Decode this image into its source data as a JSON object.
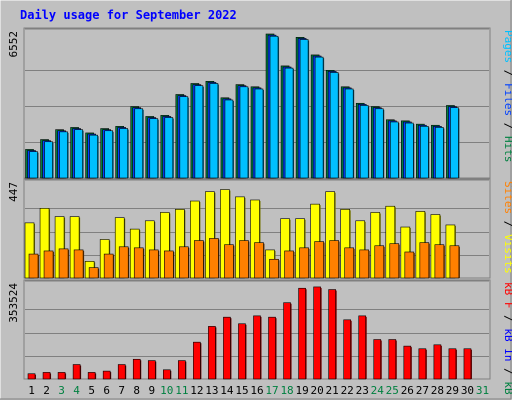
{
  "colors": {
    "background": "#c0c0c0",
    "panel": "#c0c0c0",
    "border": "#808080",
    "gridline": "#808080",
    "title": "#0000ff",
    "pages": "#00c0ff",
    "files": "#0040ff",
    "hits": "#008040",
    "visits": "#ffff00",
    "sites": "#ff8000",
    "kbytes": "#ff0000",
    "kb_in": "#0000ff",
    "kb_out": "#008040",
    "separator": "#000000",
    "day_normal": "#000000",
    "day_weekend": "#008040"
  },
  "chart_data": {
    "type": "bar",
    "title": "Daily usage for September 2022",
    "days": [
      "1",
      "2",
      "3",
      "4",
      "5",
      "6",
      "7",
      "8",
      "9",
      "10",
      "11",
      "12",
      "13",
      "14",
      "15",
      "16",
      "17",
      "18",
      "19",
      "20",
      "21",
      "22",
      "23",
      "24",
      "25",
      "26",
      "27",
      "28",
      "29",
      "30",
      "31"
    ],
    "weekend_days": [
      "3",
      "4",
      "10",
      "11",
      "17",
      "18",
      "24",
      "25",
      "31"
    ],
    "panels": [
      {
        "id": "hits",
        "axis_max_label": "6552",
        "ylim": [
          0,
          6552
        ],
        "legend": [
          {
            "text": "Pages",
            "color_key": "pages"
          },
          {
            "text": "Files",
            "color_key": "files"
          },
          {
            "text": "Hits",
            "color_key": "hits"
          }
        ],
        "series": [
          {
            "name": "Hits",
            "color_key": "hits",
            "values": [
              1300,
              1750,
              2200,
              2300,
              2050,
              2250,
              2350,
              3250,
              2800,
              2850,
              3800,
              4300,
              4400,
              3650,
              4250,
              4150,
              6552,
              5100,
              6400,
              5600,
              4900,
              4150,
              3400,
              3250,
              2650,
              2600,
              2450,
              2400,
              3300,
              0,
              0
            ]
          },
          {
            "name": "Files",
            "color_key": "files",
            "values": [
              1250,
              1700,
              2150,
              2250,
              2000,
              2200,
              2300,
              3200,
              2750,
              2800,
              3750,
              4250,
              4350,
              3600,
              4200,
              4100,
              6500,
              5050,
              6350,
              5550,
              4850,
              4100,
              3350,
              3200,
              2600,
              2550,
              2400,
              2350,
              3250,
              0,
              0
            ]
          },
          {
            "name": "Pages",
            "color_key": "pages",
            "values": [
              1200,
              1650,
              2100,
              2200,
              1950,
              2150,
              2250,
              3150,
              2700,
              2750,
              3700,
              4200,
              4300,
              3550,
              4150,
              4050,
              6450,
              5000,
              6300,
              5500,
              4800,
              4050,
              3300,
              3150,
              2550,
              2500,
              2350,
              2300,
              3200,
              0,
              0
            ]
          }
        ]
      },
      {
        "id": "visits",
        "axis_max_label": "447",
        "ylim": [
          0,
          447
        ],
        "legend": [
          {
            "text": "Sites",
            "color_key": "sites"
          },
          {
            "text": "Visits",
            "color_key": "visits"
          }
        ],
        "series": [
          {
            "name": "Visits",
            "color_key": "visits",
            "values": [
              265,
              335,
              295,
              295,
              80,
              185,
              290,
              235,
              275,
              315,
              330,
              370,
              415,
              425,
              390,
              375,
              135,
              285,
              285,
              355,
              415,
              330,
              275,
              315,
              345,
              245,
              320,
              305,
              255,
              0,
              0
            ]
          },
          {
            "name": "Sites",
            "color_key": "sites",
            "values": [
              115,
              130,
              140,
              135,
              50,
              115,
              150,
              145,
              135,
              130,
              150,
              180,
              190,
              160,
              180,
              170,
              90,
              130,
              145,
              175,
              180,
              145,
              135,
              155,
              165,
              125,
              170,
              160,
              155,
              0,
              0
            ]
          }
        ]
      },
      {
        "id": "kbytes",
        "axis_max_label": "353524",
        "ylim": [
          0,
          353524
        ],
        "legend": [
          {
            "text": "kB F",
            "color_key": "kbytes"
          },
          {
            "text": "kB In",
            "color_key": "kb_in"
          },
          {
            "text": "kB Out",
            "color_key": "kb_out"
          }
        ],
        "series": [
          {
            "name": "kB F",
            "color_key": "kbytes",
            "values": [
              20000,
              25000,
              25000,
              55000,
              25000,
              30000,
              55000,
              75000,
              70000,
              35000,
              70000,
              140000,
              200000,
              235000,
              210000,
              240000,
              235000,
              290000,
              345000,
              350000,
              340000,
              225000,
              240000,
              150000,
              150000,
              125000,
              115000,
              130000,
              115000,
              115000,
              0
            ]
          }
        ]
      }
    ]
  }
}
